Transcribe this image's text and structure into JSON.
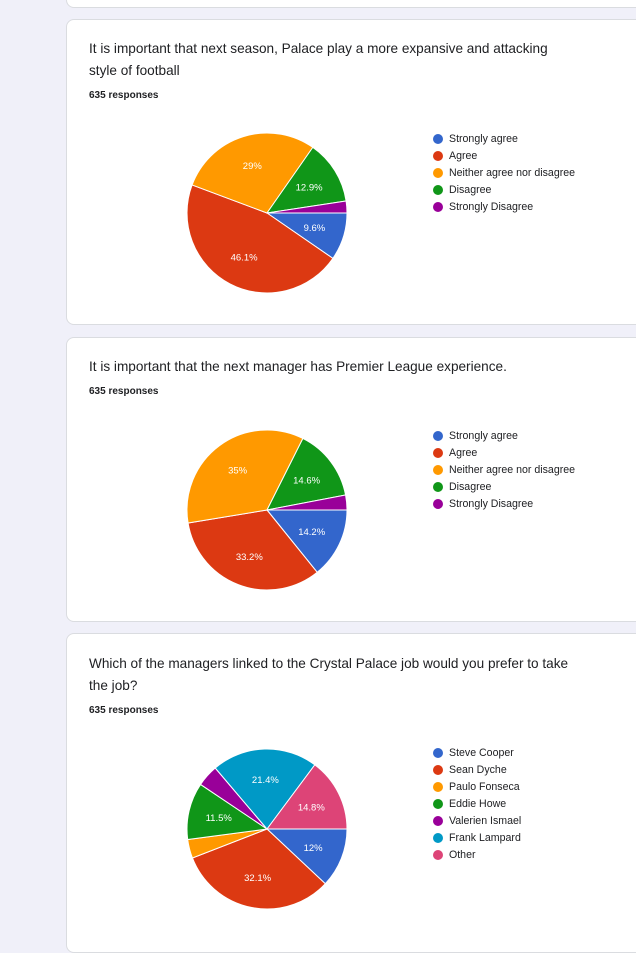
{
  "questions": [
    {
      "title": "It is important that next season, Palace play a more expansive and attacking style of football",
      "responses": "635 responses",
      "chart_data": {
        "type": "pie",
        "title": "It is important that next season, Palace play a more expansive and attacking style of football",
        "categories": [
          "Strongly agree",
          "Agree",
          "Neither agree nor disagree",
          "Disagree",
          "Strongly Disagree"
        ],
        "values": [
          9.6,
          46.1,
          29,
          12.9,
          2.4
        ],
        "labels": [
          "9.6%",
          "46.1%",
          "29%",
          "12.9%",
          ""
        ],
        "colors": [
          "#3366cc",
          "#dc3912",
          "#ff9900",
          "#109618",
          "#990099"
        ]
      }
    },
    {
      "title": "It is important that the next manager has Premier League experience.",
      "responses": "635 responses",
      "chart_data": {
        "type": "pie",
        "title": "It is important that the next manager has Premier League experience.",
        "categories": [
          "Strongly agree",
          "Agree",
          "Neither agree nor disagree",
          "Disagree",
          "Strongly Disagree"
        ],
        "values": [
          14.2,
          33.2,
          35,
          14.6,
          3.0
        ],
        "labels": [
          "14.2%",
          "33.2%",
          "35%",
          "14.6%",
          ""
        ],
        "colors": [
          "#3366cc",
          "#dc3912",
          "#ff9900",
          "#109618",
          "#990099"
        ]
      }
    },
    {
      "title": "Which of the managers linked to the Crystal Palace job would you prefer to take the job?",
      "responses": "635 responses",
      "chart_data": {
        "type": "pie",
        "title": "Which of the managers linked to the Crystal Palace job would you prefer to take the job?",
        "categories": [
          "Steve Cooper",
          "Sean Dyche",
          "Paulo Fonseca",
          "Eddie Howe",
          "Valerien Ismael",
          "Frank Lampard",
          "Other"
        ],
        "values": [
          12,
          32.1,
          3.8,
          11.5,
          4.4,
          21.4,
          14.8
        ],
        "labels": [
          "12%",
          "32.1%",
          "",
          "11.5%",
          "",
          "21.4%",
          "14.8%"
        ],
        "colors": [
          "#3366cc",
          "#dc3912",
          "#ff9900",
          "#109618",
          "#990099",
          "#0099c6",
          "#dd4477"
        ]
      }
    }
  ]
}
